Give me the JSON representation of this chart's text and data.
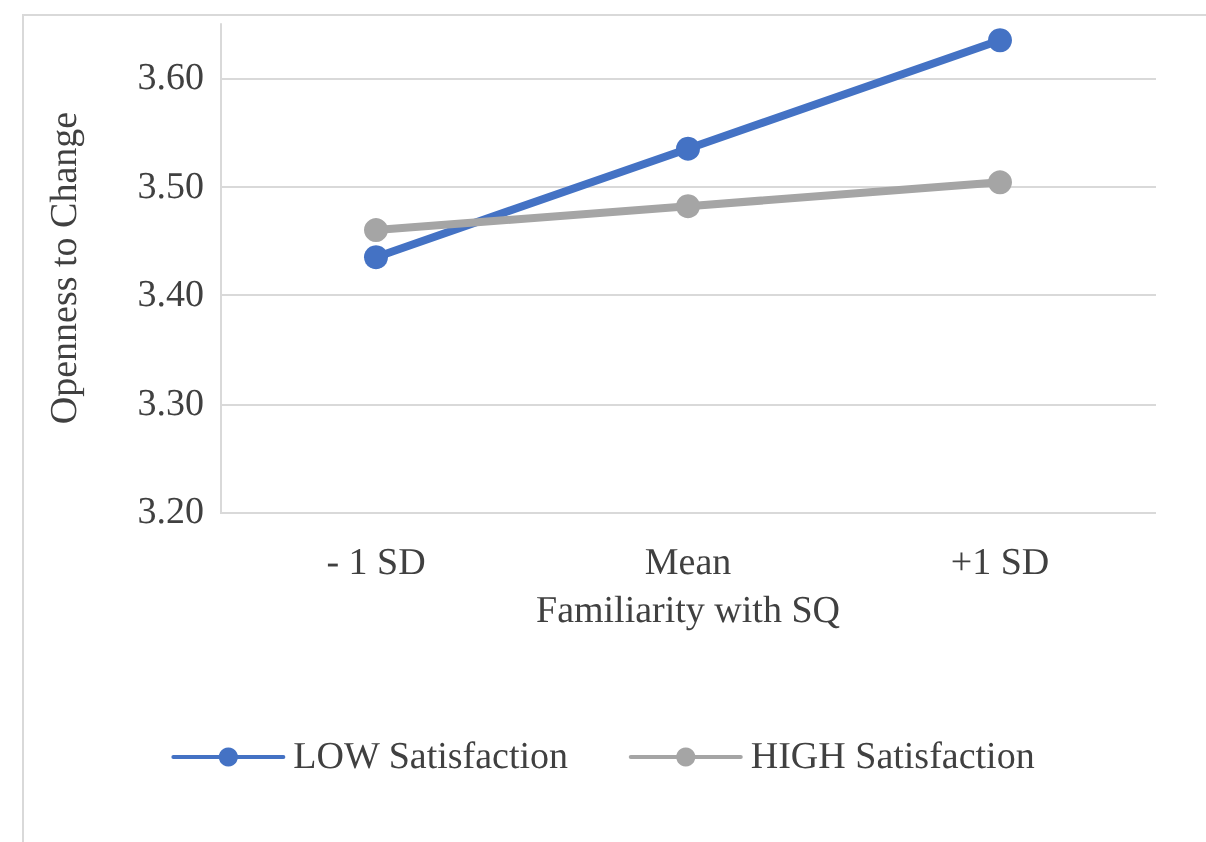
{
  "chart_data": {
    "type": "line",
    "xlabel": "Familiarity with SQ",
    "ylabel": "Openness to Change",
    "categories": [
      "- 1 SD",
      "Mean",
      "+1 SD"
    ],
    "series": [
      {
        "name": "LOW Satisfaction",
        "color": "#4472c4",
        "values": [
          3.435,
          3.535,
          3.635
        ]
      },
      {
        "name": "HIGH Satisfaction",
        "color": "#a5a5a5",
        "values": [
          3.46,
          3.482,
          3.504
        ]
      }
    ],
    "ylim": [
      3.2,
      3.65
    ],
    "yticks": [
      {
        "value": 3.2,
        "label": "3.20"
      },
      {
        "value": 3.3,
        "label": "3.30"
      },
      {
        "value": 3.4,
        "label": "3.40"
      },
      {
        "value": 3.5,
        "label": "3.50"
      },
      {
        "value": 3.6,
        "label": "3.60"
      }
    ],
    "grid": "y",
    "legend": "bottom",
    "marker": "circle",
    "line_style": "solid"
  }
}
